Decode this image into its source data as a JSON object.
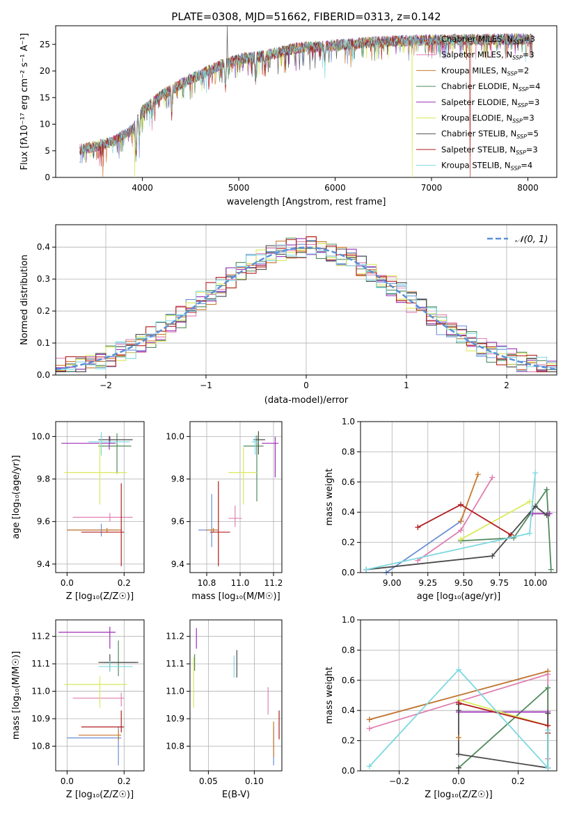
{
  "figure_title": "PLATE=0308, MJD=51662, FIBERID=0313, z=0.142",
  "colors": {
    "Chabrier MILES": "#6a8fd4",
    "Salpeter MILES": "#e07fb0",
    "Kroupa MILES": "#c8772a",
    "Chabrier ELODIE": "#4f8a5b",
    "Salpeter ELODIE": "#9b2db5",
    "Kroupa ELODIE": "#d9ea58",
    "Chabrier STELIB": "#4a4a4a",
    "Salpeter STELIB": "#b01c1c",
    "Kroupa STELIB": "#7ed8e0",
    "normal": "#5b8fd8"
  },
  "chart_data": [
    {
      "type": "line",
      "title": "PLATE=0308, MJD=51662, FIBERID=0313, z=0.142",
      "xlabel": "wavelength [Angstrom, rest frame]",
      "ylabel": "Flux [fλ10⁻¹⁷ erg cm⁻² s⁻¹ A⁻¹]",
      "xlim": [
        3100,
        8300
      ],
      "ylim": [
        0,
        28.5
      ],
      "xticks": [
        4000,
        5000,
        6000,
        7000,
        8000
      ],
      "yticks": [
        0,
        5,
        10,
        15,
        20,
        25
      ],
      "grid": false,
      "legend_position": "top-right",
      "series": [
        {
          "name": "Chabrier MILES, N_SSP=3",
          "label_main": "Chabrier MILES, N",
          "label_sub": "SSP",
          "label_tail": "=3"
        },
        {
          "name": "Salpeter MILES, N_SSP=3",
          "label_main": "Salpeter MILES, N",
          "label_sub": "SSP",
          "label_tail": "=3"
        },
        {
          "name": "Kroupa MILES, N_SSP=2",
          "label_main": "Kroupa MILES, N",
          "label_sub": "SSP",
          "label_tail": "=2"
        },
        {
          "name": "Chabrier ELODIE, N_SSP=4",
          "label_main": "Chabrier ELODIE, N",
          "label_sub": "SSP",
          "label_tail": "=4"
        },
        {
          "name": "Salpeter ELODIE, N_SSP=3",
          "label_main": "Salpeter ELODIE, N",
          "label_sub": "SSP",
          "label_tail": "=3"
        },
        {
          "name": "Kroupa ELODIE, N_SSP=3",
          "label_main": "Kroupa ELODIE, N",
          "label_sub": "SSP",
          "label_tail": "=3"
        },
        {
          "name": "Chabrier STELIB, N_SSP=5",
          "label_main": "Chabrier STELIB, N",
          "label_sub": "SSP",
          "label_tail": "=5"
        },
        {
          "name": "Salpeter STELIB, N_SSP=3",
          "label_main": "Salpeter STELIB, N",
          "label_sub": "SSP",
          "label_tail": "=3"
        },
        {
          "name": "Kroupa STELIB, N_SSP=4",
          "label_main": "Kroupa STELIB, N",
          "label_sub": "SSP",
          "label_tail": "=4"
        }
      ],
      "continuum": {
        "x": [
          3350,
          3500,
          3700,
          3900,
          4000,
          4200,
          4500,
          4800,
          5000,
          5300,
          5600,
          6000,
          6500,
          7000,
          7500,
          8050
        ],
        "y": [
          5.2,
          5.8,
          6.8,
          9.0,
          12.5,
          15.5,
          18.5,
          21.0,
          22.2,
          23.0,
          24.3,
          24.8,
          25.6,
          25.8,
          25.9,
          26.0
        ]
      },
      "data_range": [
        3350,
        8050
      ],
      "absorption_features": [
        {
          "x": 3934,
          "depth": 6.0
        },
        {
          "x": 3968,
          "depth": 5.0
        },
        {
          "x": 4102,
          "depth": 2.0
        },
        {
          "x": 4304,
          "depth": 4.0
        },
        {
          "x": 4861,
          "depth": 5.0
        },
        {
          "x": 5175,
          "depth": 4.5
        },
        {
          "x": 5270,
          "depth": 2.0
        },
        {
          "x": 5893,
          "depth": 3.0
        }
      ],
      "dropouts": [
        {
          "x": 3590,
          "series": "Kroupa MILES"
        },
        {
          "x": 3920,
          "series": "Kroupa ELODIE"
        },
        {
          "x": 6800,
          "series": "Kroupa ELODIE"
        },
        {
          "x": 7400,
          "series": "Salpeter STELIB"
        }
      ],
      "spike": {
        "x": 4880,
        "top": 28.5,
        "series": "Chabrier STELIB"
      }
    },
    {
      "type": "histogram",
      "xlabel": "(data-model)/error",
      "ylabel": "Normed distribution",
      "xlim": [
        -2.5,
        2.5
      ],
      "ylim": [
        0,
        0.47
      ],
      "xticks": [
        -2,
        -1,
        0,
        1,
        2
      ],
      "yticks": [
        0.0,
        0.1,
        0.2,
        0.3,
        0.4
      ],
      "grid": true,
      "bin_width": 0.1,
      "normal_curve_label": "𝒩(0, 1)",
      "legend_position": "top-right",
      "jitter_amplitude": 0.035
    },
    {
      "type": "scatter",
      "xlabel": "Z [log₁₀(Z/Z☉)]",
      "ylabel": "age  [log₁₀(age/yr)]",
      "xlim": [
        -0.04,
        0.27
      ],
      "ylim": [
        9.36,
        10.07
      ],
      "xticks": [
        0.0,
        0.2
      ],
      "yticks": [
        9.4,
        9.6,
        9.8,
        10.0
      ],
      "grid": true,
      "points": [
        {
          "series": "Chabrier MILES",
          "x": 0.12,
          "y": 9.56,
          "xerr": [
            0.12,
            0.06
          ],
          "yerr": [
            0.03,
            0.03
          ]
        },
        {
          "series": "Salpeter MILES",
          "x": 0.15,
          "y": 9.62,
          "xerr": [
            0.13,
            0.08
          ],
          "yerr": [
            0.02,
            0.02
          ]
        },
        {
          "series": "Kroupa MILES",
          "x": 0.14,
          "y": 9.56,
          "xerr": [
            0.14,
            0.05
          ],
          "yerr": [
            0.01,
            0.01
          ]
        },
        {
          "series": "Chabrier ELODIE",
          "x": 0.175,
          "y": 9.955,
          "xerr": [
            0.065,
            0.05
          ],
          "yerr": [
            0.13,
            0.06
          ]
        },
        {
          "series": "Salpeter ELODIE",
          "x": 0.148,
          "y": 9.968,
          "xerr": [
            0.168,
            0.022
          ],
          "yerr": [
            0.03,
            0.035
          ]
        },
        {
          "series": "Kroupa ELODIE",
          "x": 0.115,
          "y": 9.83,
          "xerr": [
            0.125,
            0.095
          ],
          "yerr": [
            0.15,
            0.14
          ]
        },
        {
          "series": "Chabrier STELIB",
          "x": 0.15,
          "y": 9.985,
          "xerr": [
            0.04,
            0.08
          ],
          "yerr": [
            0.015,
            0.015
          ]
        },
        {
          "series": "Salpeter STELIB",
          "x": 0.19,
          "y": 9.55,
          "xerr": [
            0.14,
            0.01
          ],
          "yerr": [
            0.16,
            0.23
          ]
        },
        {
          "series": "Kroupa STELIB",
          "x": 0.12,
          "y": 9.975,
          "xerr": [
            0.045,
            0.1
          ],
          "yerr": [
            0.065,
            0.045
          ]
        }
      ]
    },
    {
      "type": "scatter",
      "xlabel": "mass [log₁₀(M/M☉)]",
      "ylabel": "",
      "xlim": [
        10.7,
        11.25
      ],
      "ylim": [
        9.36,
        10.07
      ],
      "xticks": [
        10.8,
        11.0,
        11.2
      ],
      "yticks": [
        9.4,
        9.6,
        9.8,
        10.0
      ],
      "grid": true,
      "points": [
        {
          "series": "Chabrier MILES",
          "x": 10.83,
          "y": 9.56,
          "xerr": [
            0.08,
            0.03
          ],
          "yerr": [
            0.08,
            0.17
          ]
        },
        {
          "series": "Salpeter MILES",
          "x": 10.97,
          "y": 9.615,
          "xerr": [
            0.04,
            0.04
          ],
          "yerr": [
            0.04,
            0.06
          ]
        },
        {
          "series": "Kroupa MILES",
          "x": 10.84,
          "y": 9.56,
          "xerr": [
            0.04,
            0.03
          ],
          "yerr": [
            0.01,
            0.01
          ]
        },
        {
          "series": "Chabrier ELODIE",
          "x": 11.1,
          "y": 9.955,
          "xerr": [
            0.08,
            0.04
          ],
          "yerr": [
            0.26,
            0.05
          ]
        },
        {
          "series": "Salpeter ELODIE",
          "x": 11.21,
          "y": 9.968,
          "xerr": [
            0.08,
            0.02
          ],
          "yerr": [
            0.16,
            0.03
          ]
        },
        {
          "series": "Kroupa ELODIE",
          "x": 11.02,
          "y": 9.83,
          "xerr": [
            0.09,
            0.08
          ],
          "yerr": [
            0.15,
            0.12
          ]
        },
        {
          "series": "Chabrier STELIB",
          "x": 11.11,
          "y": 9.985,
          "xerr": [
            0.03,
            0.04
          ],
          "yerr": [
            0.07,
            0.04
          ]
        },
        {
          "series": "Salpeter STELIB",
          "x": 10.87,
          "y": 9.55,
          "xerr": [
            0.05,
            0.07
          ],
          "yerr": [
            0.16,
            0.24
          ]
        },
        {
          "series": "Kroupa STELIB",
          "x": 11.09,
          "y": 9.975,
          "xerr": [
            0.02,
            0.02
          ],
          "yerr": [
            0.06,
            0.03
          ]
        }
      ]
    },
    {
      "type": "line",
      "xlabel": "age  [log₁₀(age/yr)]",
      "ylabel": "mass weight",
      "xlim": [
        8.78,
        10.15
      ],
      "ylim": [
        0,
        1.0
      ],
      "xticks": [
        9.0,
        9.25,
        9.5,
        9.75,
        10.0
      ],
      "yticks": [
        0.0,
        0.2,
        0.4,
        0.6,
        0.8,
        1.0
      ],
      "grid": true,
      "series": [
        {
          "name": "Chabrier MILES",
          "x": [
            8.96,
            9.48
          ],
          "y": [
            0.0,
            0.34
          ]
        },
        {
          "name": "Salpeter MILES",
          "x": [
            9.18,
            9.48,
            9.7
          ],
          "y": [
            0.08,
            0.28,
            0.63
          ]
        },
        {
          "name": "Kroupa MILES",
          "x": [
            9.48,
            9.6
          ],
          "y": [
            0.34,
            0.65
          ]
        },
        {
          "name": "Chabrier ELODIE",
          "x": [
            9.48,
            9.85,
            10.08,
            10.11
          ],
          "y": [
            0.21,
            0.23,
            0.55,
            0.02
          ]
        },
        {
          "name": "Salpeter ELODIE",
          "x": [
            9.98,
            10.1
          ],
          "y": [
            0.39,
            0.39
          ]
        },
        {
          "name": "Kroupa ELODIE",
          "x": [
            9.48,
            9.96
          ],
          "y": [
            0.22,
            0.47
          ]
        },
        {
          "name": "Chabrier STELIB",
          "x": [
            8.82,
            9.7,
            10.0,
            10.08
          ],
          "y": [
            0.02,
            0.11,
            0.44,
            0.38
          ]
        },
        {
          "name": "Salpeter STELIB",
          "x": [
            9.18,
            9.48,
            9.83
          ],
          "y": [
            0.3,
            0.45,
            0.25
          ]
        },
        {
          "name": "Kroupa STELIB",
          "x": [
            8.82,
            9.96,
            10.0
          ],
          "y": [
            0.02,
            0.26,
            0.66
          ]
        }
      ]
    },
    {
      "type": "scatter",
      "xlabel": "Z [log₁₀(Z/Z☉)]",
      "ylabel": "mass [log₁₀(M/M☉)]",
      "xlim": [
        -0.04,
        0.27
      ],
      "ylim": [
        10.71,
        11.26
      ],
      "xticks": [
        0.0,
        0.2
      ],
      "yticks": [
        10.8,
        10.9,
        11.0,
        11.1,
        11.2
      ],
      "grid": true,
      "points": [
        {
          "series": "Chabrier MILES",
          "x": 0.18,
          "y": 10.83,
          "xerr": [
            0.18,
            0.01
          ],
          "yerr": [
            0.1,
            0.04
          ]
        },
        {
          "series": "Salpeter MILES",
          "x": 0.19,
          "y": 10.975,
          "xerr": [
            0.17,
            0.01
          ],
          "yerr": [
            0.03,
            0.02
          ]
        },
        {
          "series": "Kroupa MILES",
          "x": 0.18,
          "y": 10.84,
          "xerr": [
            0.14,
            0.01
          ],
          "yerr": [
            0.02,
            0.02
          ]
        },
        {
          "series": "Chabrier ELODIE",
          "x": 0.18,
          "y": 11.105,
          "xerr": [
            0.05,
            0.06
          ],
          "yerr": [
            0.05,
            0.08
          ]
        },
        {
          "series": "Salpeter ELODIE",
          "x": 0.15,
          "y": 11.215,
          "xerr": [
            0.18,
            0.02
          ],
          "yerr": [
            0.06,
            0.02
          ]
        },
        {
          "series": "Kroupa ELODIE",
          "x": 0.115,
          "y": 11.025,
          "xerr": [
            0.125,
            0.095
          ],
          "yerr": [
            0.085,
            0.03
          ]
        },
        {
          "series": "Chabrier STELIB",
          "x": 0.15,
          "y": 11.105,
          "xerr": [
            0.04,
            0.1
          ],
          "yerr": [
            0.03,
            0.03
          ]
        },
        {
          "series": "Salpeter STELIB",
          "x": 0.19,
          "y": 10.87,
          "xerr": [
            0.14,
            0.01
          ],
          "yerr": [
            0.02,
            0.06
          ]
        },
        {
          "series": "Kroupa STELIB",
          "x": 0.15,
          "y": 11.09,
          "xerr": [
            0.04,
            0.08
          ],
          "yerr": [
            0.02,
            0.02
          ]
        }
      ]
    },
    {
      "type": "scatter",
      "xlabel": "E(B-V)",
      "ylabel": "",
      "xlim": [
        0.03,
        0.13
      ],
      "ylim": [
        10.71,
        11.26
      ],
      "xticks": [
        0.05,
        0.1
      ],
      "yticks": [
        10.8,
        10.9,
        11.0,
        11.1,
        11.2
      ],
      "grid": true,
      "points": [
        {
          "series": "Chabrier MILES",
          "x": 0.121,
          "y": 10.83,
          "xerr": [
            0,
            0
          ],
          "yerr": [
            0.1,
            0.04
          ]
        },
        {
          "series": "Salpeter MILES",
          "x": 0.115,
          "y": 10.975,
          "xerr": [
            0,
            0
          ],
          "yerr": [
            0.06,
            0.04
          ]
        },
        {
          "series": "Kroupa MILES",
          "x": 0.121,
          "y": 10.84,
          "xerr": [
            0,
            0
          ],
          "yerr": [
            0.08,
            0.05
          ]
        },
        {
          "series": "Chabrier ELODIE",
          "x": 0.035,
          "y": 11.105,
          "xerr": [
            0,
            0
          ],
          "yerr": [
            0.03,
            0.03
          ]
        },
        {
          "series": "Salpeter ELODIE",
          "x": 0.037,
          "y": 11.185,
          "xerr": [
            0,
            0
          ],
          "yerr": [
            0.03,
            0.045
          ]
        },
        {
          "series": "Kroupa ELODIE",
          "x": 0.034,
          "y": 11.025,
          "xerr": [
            0,
            0
          ],
          "yerr": [
            0.085,
            0.1
          ]
        },
        {
          "series": "Chabrier STELIB",
          "x": 0.081,
          "y": 11.1,
          "xerr": [
            0,
            0
          ],
          "yerr": [
            0.05,
            0.05
          ]
        },
        {
          "series": "Salpeter STELIB",
          "x": 0.127,
          "y": 10.875,
          "xerr": [
            0,
            0
          ],
          "yerr": [
            0.05,
            0.055
          ]
        },
        {
          "series": "Kroupa STELIB",
          "x": 0.078,
          "y": 11.09,
          "xerr": [
            0,
            0
          ],
          "yerr": [
            0.04,
            0.04
          ]
        }
      ]
    },
    {
      "type": "line",
      "xlabel": "Z [log₁₀(Z/Z☉)]",
      "ylabel": "mass weight",
      "xlim": [
        -0.33,
        0.33
      ],
      "ylim": [
        0,
        1.0
      ],
      "xticks": [
        -0.2,
        0.0,
        0.2
      ],
      "yticks": [
        0.0,
        0.2,
        0.4,
        0.6,
        0.8,
        1.0
      ],
      "grid": true,
      "series": [
        {
          "name": "Chabrier MILES",
          "x": [
            -0.3,
            0.3
          ],
          "y": [
            0.34,
            0.66
          ]
        },
        {
          "name": "Salpeter MILES",
          "x": [
            -0.3,
            0.3,
            0.3
          ],
          "y": [
            0.28,
            0.64,
            0.08
          ]
        },
        {
          "name": "Kroupa MILES",
          "x": [
            -0.3,
            0.3
          ],
          "y": [
            0.34,
            0.66
          ]
        },
        {
          "name": "Chabrier ELODIE",
          "x": [
            0.0,
            0.3,
            0.3
          ],
          "y": [
            0.02,
            0.55,
            0.02
          ]
        },
        {
          "name": "Salpeter ELODIE",
          "x": [
            0.0,
            0.3
          ],
          "y": [
            0.39,
            0.39
          ]
        },
        {
          "name": "Kroupa ELODIE",
          "x": [
            0.0,
            0.3
          ],
          "y": [
            0.47,
            0.3
          ]
        },
        {
          "name": "Chabrier STELIB",
          "x": [
            0.0,
            0.0,
            0.3,
            0.3
          ],
          "y": [
            0.44,
            0.11,
            0.02,
            0.38
          ]
        },
        {
          "name": "Salpeter STELIB",
          "x": [
            0.0,
            0.3,
            0.3
          ],
          "y": [
            0.45,
            0.3,
            0.25
          ]
        },
        {
          "name": "Kroupa STELIB",
          "x": [
            -0.3,
            0.0,
            0.3,
            0.3
          ],
          "y": [
            0.03,
            0.67,
            0.02,
            0.27
          ]
        }
      ],
      "extra_markers": [
        {
          "series": "Kroupa MILES",
          "x": 0.0,
          "y": 0.22
        },
        {
          "series": "Chabrier STELIB",
          "x": 0.0,
          "y": 0.02
        },
        {
          "series": "Chabrier STELIB",
          "x": 0.0,
          "y": 0.4
        }
      ]
    }
  ]
}
